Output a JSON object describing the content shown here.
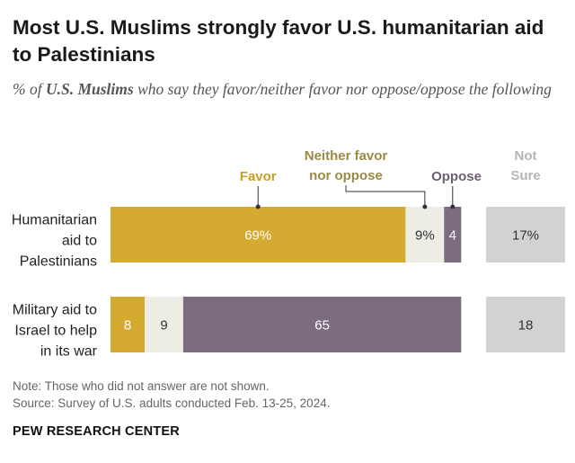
{
  "title": "Most U.S. Muslims strongly favor U.S. humanitarian aid to Palestinians",
  "subtitle": {
    "prefix": "% of ",
    "emphasis": "U.S. Muslims",
    "suffix": " who say they favor/neither favor nor oppose/oppose the following"
  },
  "colors": {
    "favor": "#d4aa31",
    "neither": "#ededE6",
    "oppose": "#7b6c80",
    "not_sure": "#d2d2d2",
    "favor_label": "#c99f24",
    "neither_label": "#9a8a45",
    "oppose_label": "#6d5f73",
    "not_sure_label": "#b5b5b5"
  },
  "chart_data": {
    "type": "bar",
    "orientation": "horizontal",
    "stacked": true,
    "categories": [
      "Humanitarian aid to Palestinians",
      "Military aid to Israel to help in its war"
    ],
    "category_lines": [
      [
        "Humanitarian",
        "aid to",
        "Palestinians"
      ],
      [
        "Military aid to",
        "Israel to help",
        "in its war"
      ]
    ],
    "series": [
      {
        "name": "Favor",
        "values": [
          69,
          8
        ],
        "labels": [
          "69%",
          "8"
        ]
      },
      {
        "name": "Neither favor nor oppose",
        "values": [
          9,
          9
        ],
        "labels": [
          "9%",
          "9"
        ]
      },
      {
        "name": "Oppose",
        "values": [
          4,
          65
        ],
        "labels": [
          "4",
          "65"
        ]
      }
    ],
    "separate_column": {
      "name": "Not Sure",
      "values": [
        17,
        18
      ],
      "labels": [
        "17%",
        "18"
      ]
    },
    "legend": {
      "favor": "Favor",
      "neither_lines": [
        "Neither favor",
        "nor oppose"
      ],
      "oppose": "Oppose",
      "not_sure_lines": [
        "Not",
        "Sure"
      ]
    }
  },
  "notes": {
    "note": "Note: Those who did not answer are not shown.",
    "source": "Source: Survey of U.S. adults conducted Feb. 13-25, 2024."
  },
  "brand": "PEW RESEARCH CENTER"
}
